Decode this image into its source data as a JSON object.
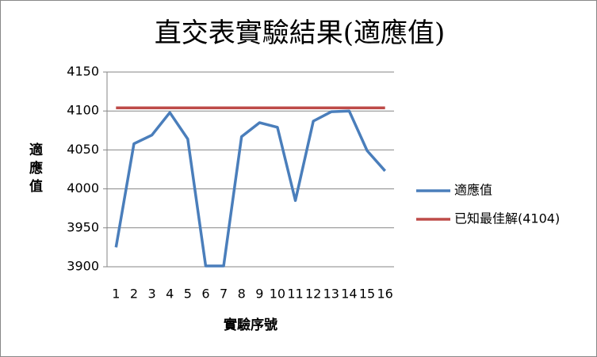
{
  "chart_data": {
    "type": "line",
    "title": "直交表實驗結果(適應值)",
    "x_label": "實驗序號",
    "y_label": "適應值",
    "categories": [
      "1",
      "2",
      "3",
      "4",
      "5",
      "6",
      "7",
      "8",
      "9",
      "10",
      "11",
      "12",
      "13",
      "14",
      "15",
      "16"
    ],
    "series": [
      {
        "name": "適應值",
        "color": "#4a7ebb",
        "values": [
          3925,
          4058,
          4069,
          4098,
          4064,
          3901,
          3901,
          4067,
          4085,
          4079,
          3985,
          4087,
          4099,
          4100,
          4049,
          4023
        ]
      },
      {
        "name": "已知最佳解(4104)",
        "color": "#be4b48",
        "values": [
          4104,
          4104,
          4104,
          4104,
          4104,
          4104,
          4104,
          4104,
          4104,
          4104,
          4104,
          4104,
          4104,
          4104,
          4104,
          4104
        ]
      }
    ],
    "ylim": [
      3900,
      4150
    ],
    "yticks": [
      3900,
      3950,
      4000,
      4050,
      4100,
      4150
    ],
    "grid": true,
    "legend": "right"
  }
}
